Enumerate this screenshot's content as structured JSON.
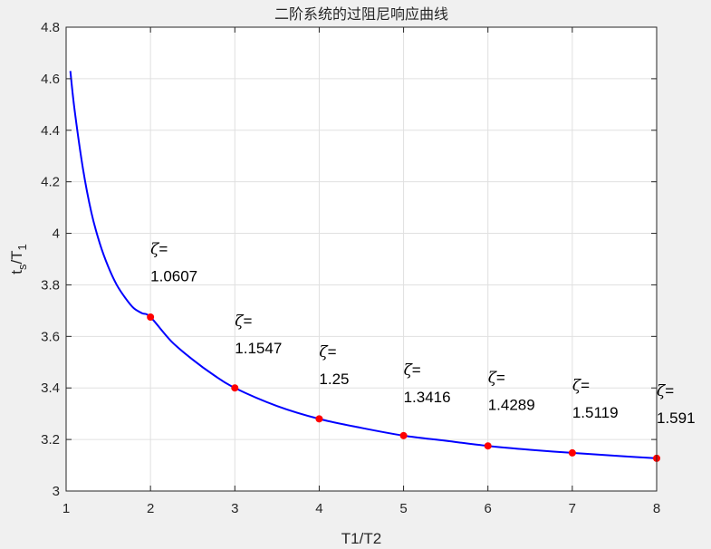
{
  "chart_data": {
    "type": "line",
    "title": "二阶系统的过阻尼响应曲线",
    "xlabel": "T1/T2",
    "ylabel": {
      "main": "t",
      "sub1": "s",
      "mid": "/T",
      "sub2": "1"
    },
    "xlim": [
      1,
      8
    ],
    "ylim": [
      3,
      4.8
    ],
    "xticks": [
      "1",
      "2",
      "3",
      "4",
      "5",
      "6",
      "7",
      "8"
    ],
    "yticks": [
      "3",
      "3.2",
      "3.4",
      "3.6",
      "3.8",
      "4",
      "4.2",
      "4.4",
      "4.6",
      "4.8"
    ],
    "grid": true,
    "curve_color": "#0000ff",
    "marker_color": "#ff0000",
    "series": [
      {
        "x": [
          1.05,
          1.1,
          1.2,
          1.3,
          1.4,
          1.5,
          1.6,
          1.7,
          1.8,
          1.9,
          2.0,
          2.25,
          2.5,
          2.75,
          3.0,
          3.5,
          4.0,
          4.5,
          5.0,
          5.5,
          6.0,
          6.5,
          7.0,
          7.5,
          8.0
        ],
        "y": [
          4.63,
          4.48,
          4.25,
          4.08,
          3.96,
          3.87,
          3.8,
          3.75,
          3.71,
          3.69,
          3.675,
          3.58,
          3.51,
          3.45,
          3.4,
          3.33,
          3.28,
          3.245,
          3.215,
          3.195,
          3.175,
          3.16,
          3.148,
          3.137,
          3.127
        ]
      }
    ],
    "markers": [
      {
        "x": 2,
        "y": 3.675
      },
      {
        "x": 3,
        "y": 3.4
      },
      {
        "x": 4,
        "y": 3.28
      },
      {
        "x": 5,
        "y": 3.215
      },
      {
        "x": 6,
        "y": 3.175
      },
      {
        "x": 7,
        "y": 3.148
      },
      {
        "x": 8,
        "y": 3.127
      }
    ],
    "annotations": [
      {
        "symbol": "ζ",
        "eq": "=",
        "value": "1.0607",
        "x": 2,
        "y": 3.92
      },
      {
        "symbol": "ζ",
        "eq": "=",
        "value": "1.1547",
        "x": 3,
        "y": 3.64
      },
      {
        "symbol": "ζ",
        "eq": "=",
        "value": "1.25",
        "x": 4,
        "y": 3.52
      },
      {
        "symbol": "ζ",
        "eq": "=",
        "value": "1.3416",
        "x": 5,
        "y": 3.45
      },
      {
        "symbol": "ζ",
        "eq": "=",
        "value": "1.4289",
        "x": 6,
        "y": 3.42
      },
      {
        "symbol": "ζ",
        "eq": "=",
        "value": "1.5119",
        "x": 7,
        "y": 3.39
      },
      {
        "symbol": "ζ",
        "eq": "=",
        "value": "1.591",
        "x": 8,
        "y": 3.37
      }
    ]
  }
}
